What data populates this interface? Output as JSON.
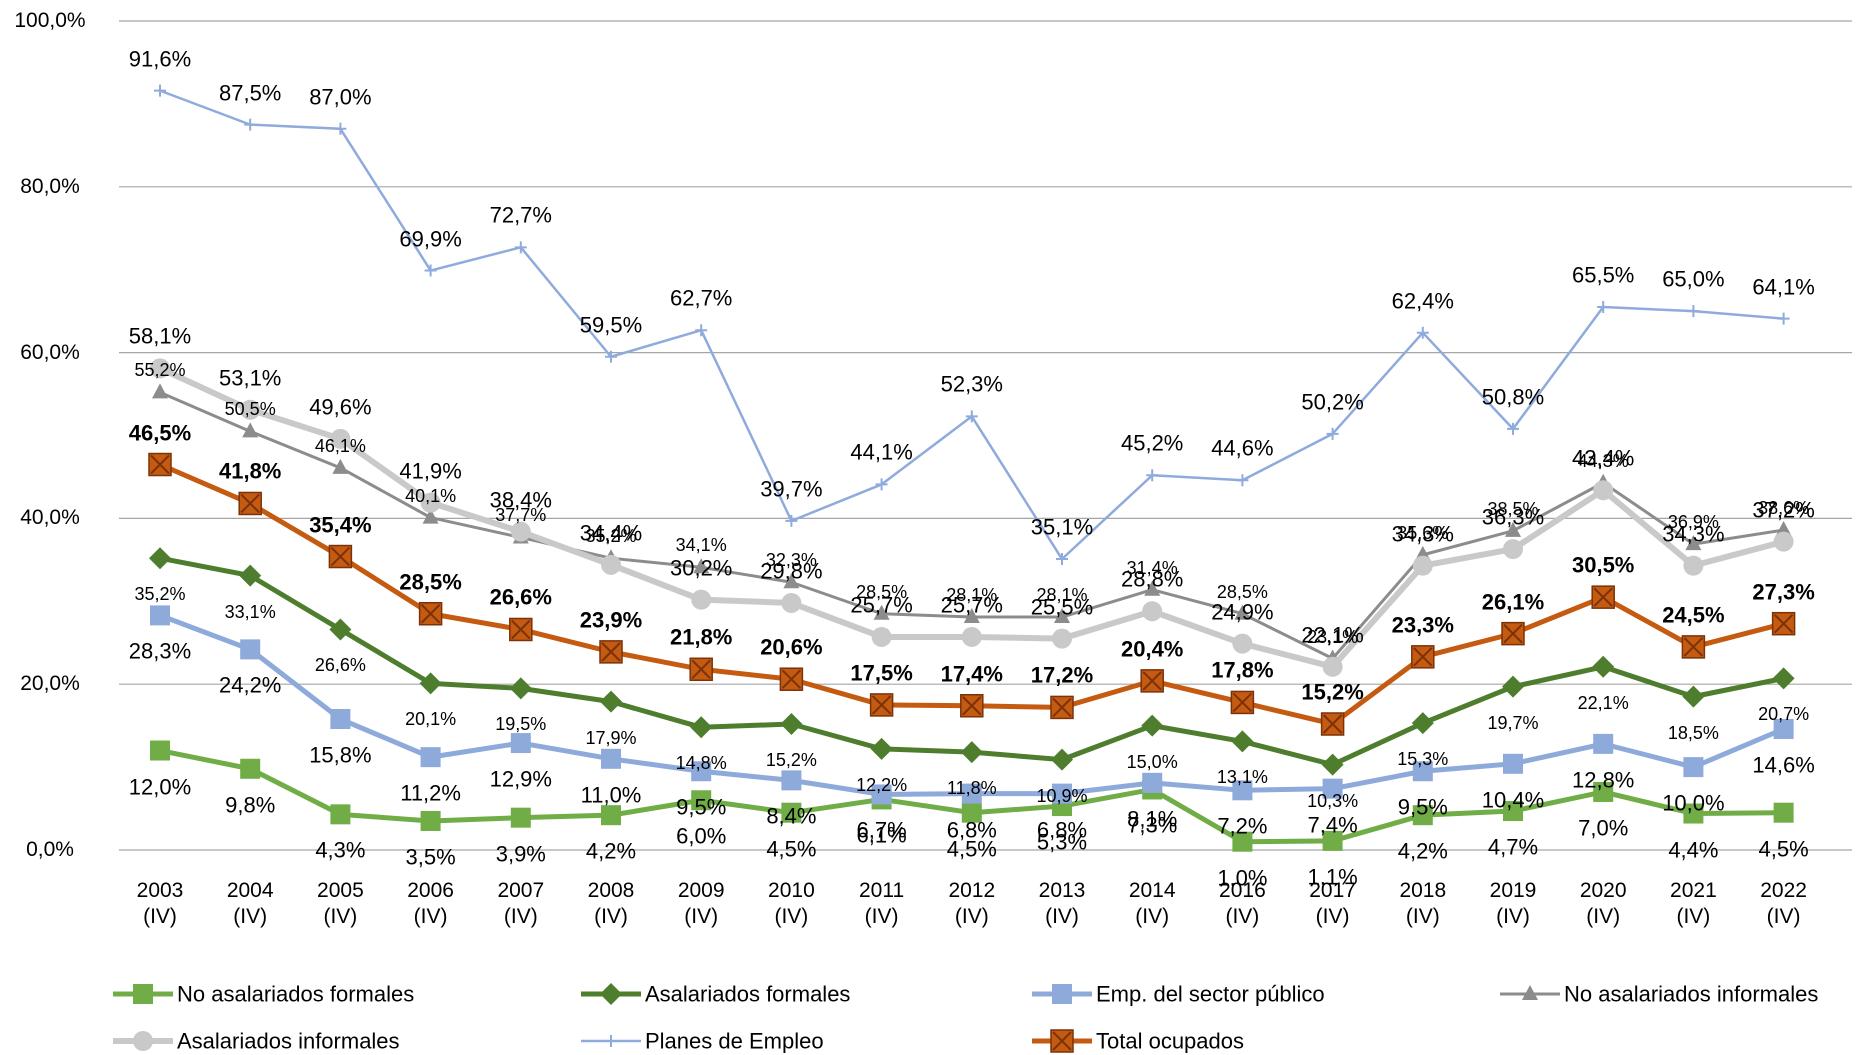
{
  "chart_data": {
    "type": "line",
    "categories": [
      "2003\n(IV)",
      "2004\n(IV)",
      "2005\n(IV)",
      "2006\n(IV)",
      "2007\n(IV)",
      "2008\n(IV)",
      "2009\n(IV)",
      "2010\n(IV)",
      "2011\n(IV)",
      "2012\n(IV)",
      "2013\n(IV)",
      "2014\n(IV)",
      "2016\n(IV)",
      "2017\n(IV)",
      "2018\n(IV)",
      "2019\n(IV)",
      "2020\n(IV)",
      "2021\n(IV)",
      "2022\n(IV)"
    ],
    "ylim": [
      0,
      100
    ],
    "yticks": [
      {
        "value": 0,
        "label": "0,0%"
      },
      {
        "value": 20,
        "label": "20,0%"
      },
      {
        "value": 40,
        "label": "40,0%"
      },
      {
        "value": 60,
        "label": "60,0%"
      },
      {
        "value": 80,
        "label": "80,0%"
      },
      {
        "value": 100,
        "label": "100,0%"
      }
    ],
    "grid": true,
    "series": [
      {
        "name": "No asalariados formales",
        "color": "#70ad47",
        "marker": "square",
        "line_width": 5,
        "label_position": "below",
        "values": [
          12.0,
          9.8,
          4.3,
          3.5,
          3.9,
          4.2,
          6.0,
          4.5,
          6.1,
          4.5,
          5.3,
          7.3,
          1.0,
          1.1,
          4.2,
          4.7,
          7.0,
          4.4,
          4.5
        ],
        "value_labels": [
          "12,0%",
          "9,8%",
          "4,3%",
          "3,5%",
          "3,9%",
          "4,2%",
          "6,0%",
          "4,5%",
          "6,1%",
          "4,5%",
          "5,3%",
          "7,3%",
          "1,0%",
          "1,1%",
          "4,2%",
          "4,7%",
          "7,0%",
          "4,4%",
          "4,5%"
        ]
      },
      {
        "name": "Asalariados formales",
        "color": "#4e7d2e",
        "marker": "diamond",
        "line_width": 5,
        "label_position": "below",
        "values": [
          35.2,
          33.1,
          26.6,
          20.1,
          19.5,
          17.9,
          14.8,
          15.2,
          12.2,
          11.8,
          10.9,
          15.0,
          13.1,
          10.3,
          15.3,
          19.7,
          22.1,
          18.5,
          20.7
        ],
        "value_labels": [
          "35,2%",
          "33,1%",
          "26,6%",
          "20,1%",
          "19,5%",
          "17,9%",
          "14,8%",
          "15,2%",
          "12,2%",
          "11,8%",
          "10,9%",
          "15,0%",
          "13,1%",
          "10,3%",
          "15,3%",
          "19,7%",
          "22,1%",
          "18,5%",
          "20,7%"
        ]
      },
      {
        "name": "Emp. del sector público",
        "color": "#8eaadb",
        "marker": "square",
        "line_width": 5,
        "label_position": "below",
        "values": [
          28.3,
          24.2,
          15.8,
          11.2,
          12.9,
          11.0,
          9.5,
          8.4,
          6.7,
          6.8,
          6.8,
          8.1,
          7.2,
          7.4,
          9.5,
          10.4,
          12.8,
          10.0,
          14.6
        ],
        "value_labels": [
          "28,3%",
          "24,2%",
          "15,8%",
          "11,2%",
          "12,9%",
          "11,0%",
          "9,5%",
          "8,4%",
          "6,7%",
          "6,8%",
          "6,8%",
          "8,1%",
          "7,2%",
          "7,4%",
          "9,5%",
          "10,4%",
          "12,8%",
          "10,0%",
          "14,6%"
        ]
      },
      {
        "name": "No asalariados informales",
        "color": "#8c8c8c",
        "marker": "triangle",
        "line_width": 3,
        "label_position": "above",
        "values": [
          55.2,
          50.5,
          46.1,
          40.1,
          37.7,
          35.2,
          34.1,
          32.3,
          28.5,
          28.1,
          28.1,
          31.4,
          28.5,
          23.1,
          35.6,
          38.5,
          44.3,
          36.9,
          38.6
        ],
        "value_labels": [
          "55,2%",
          "50,5%",
          "46,1%",
          "40,1%",
          "37,7%",
          "35,2%",
          "34,1%",
          "32,3%",
          "28,5%",
          "28,1%",
          "28,1%",
          "31,4%",
          "28,5%",
          "23,1%",
          "35,6%",
          "38,5%",
          "44,3%",
          "36,9%",
          "38,6%"
        ]
      },
      {
        "name": "Asalariados informales",
        "color": "#c9c9c9",
        "marker": "circle",
        "line_width": 6,
        "label_position": "above",
        "values": [
          58.1,
          53.1,
          49.6,
          41.9,
          38.4,
          34.4,
          30.2,
          29.8,
          25.7,
          25.7,
          25.5,
          28.8,
          24.9,
          22.1,
          34.3,
          36.3,
          43.4,
          34.3,
          37.2
        ],
        "value_labels": [
          "58,1%",
          "53,1%",
          "49,6%",
          "41,9%",
          "38,4%",
          "34,4%",
          "30,2%",
          "29,8%",
          "25,7%",
          "25,7%",
          "25,5%",
          "28,8%",
          "24,9%",
          "22,1%",
          "34,3%",
          "36,3%",
          "43,4%",
          "34,3%",
          "37,2%"
        ]
      },
      {
        "name": "Planes de Empleo",
        "color": "#8faadc",
        "marker": "plus",
        "line_width": 2.5,
        "label_position": "above",
        "values": [
          91.6,
          87.5,
          87.0,
          69.9,
          72.7,
          59.5,
          62.7,
          39.7,
          44.1,
          52.3,
          35.1,
          45.2,
          44.6,
          50.2,
          62.4,
          50.8,
          65.5,
          65.0,
          64.1
        ],
        "value_labels": [
          "91,6%",
          "87,5%",
          "87,0%",
          "69,9%",
          "72,7%",
          "59,5%",
          "62,7%",
          "39,7%",
          "44,1%",
          "52,3%",
          "35,1%",
          "45,2%",
          "44,6%",
          "50,2%",
          "62,4%",
          "50,8%",
          "65,5%",
          "65,0%",
          "64,1%"
        ]
      },
      {
        "name": "Total ocupados",
        "color": "#c55a11",
        "marker": "x-square",
        "line_width": 5,
        "label_position": "above",
        "bold_labels": true,
        "values": [
          46.5,
          41.8,
          35.4,
          28.5,
          26.6,
          23.9,
          21.8,
          20.6,
          17.5,
          17.4,
          17.2,
          20.4,
          17.8,
          15.2,
          23.3,
          26.1,
          30.5,
          24.5,
          27.3
        ],
        "value_labels": [
          "46,5%",
          "41,8%",
          "35,4%",
          "28,5%",
          "26,6%",
          "23,9%",
          "21,8%",
          "20,6%",
          "17,5%",
          "17,4%",
          "17,2%",
          "20,4%",
          "17,8%",
          "15,2%",
          "23,3%",
          "26,1%",
          "30,5%",
          "24,5%",
          "27,3%"
        ]
      }
    ]
  }
}
